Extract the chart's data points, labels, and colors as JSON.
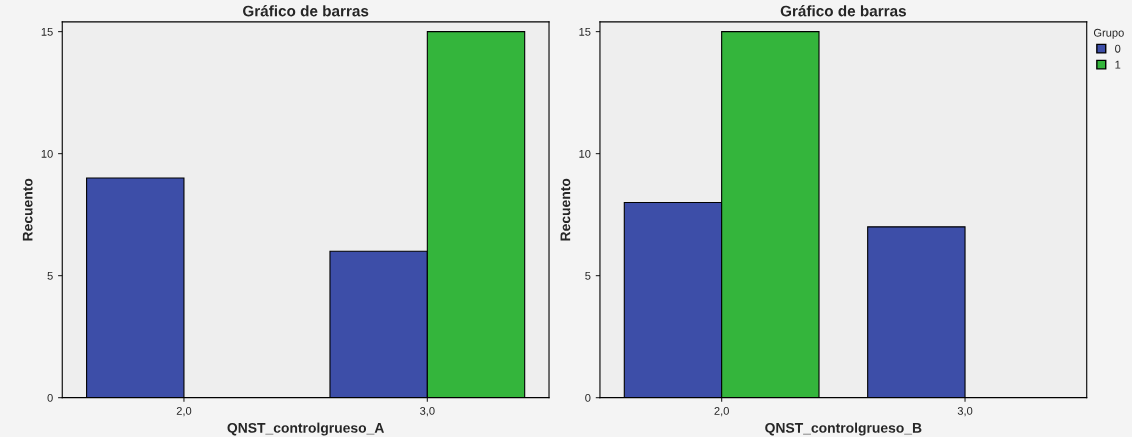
{
  "chart_data": [
    {
      "type": "bar",
      "title": "Gráfico de barras",
      "xlabel": "QNST_controlgrueso_A",
      "ylabel": "Recuento",
      "categories": [
        "2,0",
        "3,0"
      ],
      "ylim": [
        0,
        15.4
      ],
      "yticks": [
        0,
        5,
        10,
        15
      ],
      "grid": false,
      "legend": false,
      "series": [
        {
          "color": "#3d4ea8",
          "values": [
            9,
            6
          ]
        },
        {
          "color": "#34b53c",
          "values": [
            null,
            15
          ]
        }
      ]
    },
    {
      "type": "bar",
      "title": "Gráfico de barras",
      "xlabel": "QNST_controlgrueso_B",
      "ylabel": "Recuento",
      "categories": [
        "2,0",
        "3,0"
      ],
      "ylim": [
        0,
        15.4
      ],
      "yticks": [
        0,
        5,
        10,
        15
      ],
      "grid": false,
      "legend": "right",
      "legend_title": "Grupo",
      "series": [
        {
          "name": "0",
          "color": "#3d4ea8",
          "values": [
            8,
            7
          ]
        },
        {
          "name": "1",
          "color": "#34b53c",
          "values": [
            15,
            null
          ]
        }
      ]
    }
  ]
}
